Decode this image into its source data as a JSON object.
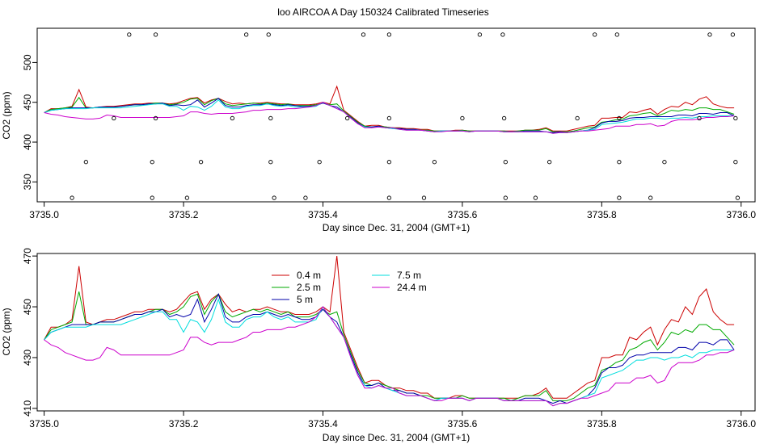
{
  "title": "loo AIRCOA A  Day 150324  Calibrated Timeseries",
  "chart_data": [
    {
      "type": "line",
      "xlabel": "Day since Dec. 31, 2004 (GMT+1)",
      "ylabel": "CO2 (ppm)",
      "xlim": [
        3734.99,
        3736.02
      ],
      "ylim": [
        325,
        543
      ],
      "xticks": [
        "3735.0",
        "3735.2",
        "3735.4",
        "3735.6",
        "3735.8",
        "3736.0"
      ],
      "yticks": [
        "350",
        "400",
        "450",
        "500"
      ],
      "colors": [
        "#cc0000",
        "#00aa00",
        "#0000aa",
        "#00dddd",
        "#cc00cc"
      ],
      "x": [
        3735.0,
        3735.01,
        3735.02,
        3735.03,
        3735.04,
        3735.05,
        3735.06,
        3735.07,
        3735.08,
        3735.09,
        3735.1,
        3735.11,
        3735.12,
        3735.13,
        3735.14,
        3735.15,
        3735.16,
        3735.17,
        3735.18,
        3735.19,
        3735.2,
        3735.21,
        3735.22,
        3735.23,
        3735.24,
        3735.25,
        3735.26,
        3735.27,
        3735.28,
        3735.29,
        3735.3,
        3735.31,
        3735.32,
        3735.33,
        3735.34,
        3735.35,
        3735.36,
        3735.37,
        3735.38,
        3735.39,
        3735.4,
        3735.41,
        3735.42,
        3735.43,
        3735.44,
        3735.45,
        3735.46,
        3735.47,
        3735.48,
        3735.49,
        3735.5,
        3735.51,
        3735.52,
        3735.53,
        3735.54,
        3735.55,
        3735.56,
        3735.57,
        3735.58,
        3735.59,
        3735.6,
        3735.61,
        3735.62,
        3735.63,
        3735.64,
        3735.65,
        3735.66,
        3735.67,
        3735.68,
        3735.69,
        3735.7,
        3735.71,
        3735.72,
        3735.73,
        3735.74,
        3735.75,
        3735.76,
        3735.77,
        3735.78,
        3735.79,
        3735.8,
        3735.81,
        3735.82,
        3735.83,
        3735.84,
        3735.85,
        3735.86,
        3735.87,
        3735.88,
        3735.89,
        3735.9,
        3735.91,
        3735.92,
        3735.93,
        3735.94,
        3735.95,
        3735.96,
        3735.97,
        3735.98,
        3735.99
      ],
      "series": [
        {
          "values": [
            437,
            442,
            442,
            443,
            445,
            466,
            444,
            443,
            444,
            445,
            445,
            446,
            447,
            448,
            448,
            449,
            449,
            449,
            448,
            449,
            452,
            455,
            456,
            449,
            453,
            455,
            451,
            448,
            449,
            448,
            449,
            449,
            450,
            449,
            448,
            448,
            447,
            447,
            447,
            448,
            450,
            448,
            470,
            440,
            433,
            426,
            420,
            421,
            421,
            419,
            418,
            418,
            417,
            417,
            416,
            416,
            414,
            414,
            414,
            415,
            415,
            414,
            414,
            414,
            414,
            414,
            414,
            414,
            414,
            415,
            415,
            416,
            418,
            414,
            414,
            414,
            416,
            418,
            420,
            421,
            430,
            430,
            431,
            431,
            438,
            437,
            440,
            442,
            435,
            441,
            445,
            444,
            450,
            447,
            454,
            457,
            448,
            445,
            443,
            443
          ]
        },
        {
          "values": [
            437,
            441,
            442,
            443,
            444,
            456,
            443,
            443,
            444,
            444,
            444,
            445,
            446,
            447,
            447,
            448,
            449,
            449,
            447,
            448,
            450,
            454,
            455,
            447,
            452,
            455,
            448,
            446,
            447,
            448,
            449,
            448,
            449,
            448,
            447,
            448,
            446,
            446,
            446,
            447,
            449,
            447,
            448,
            439,
            432,
            425,
            420,
            419,
            420,
            419,
            418,
            417,
            416,
            416,
            415,
            415,
            414,
            414,
            414,
            414,
            415,
            414,
            414,
            414,
            414,
            414,
            414,
            413,
            414,
            415,
            415,
            415,
            417,
            413,
            413,
            413,
            414,
            416,
            418,
            419,
            425,
            426,
            428,
            429,
            433,
            434,
            436,
            437,
            433,
            436,
            440,
            439,
            441,
            440,
            443,
            443,
            441,
            441,
            438,
            435
          ]
        },
        {
          "values": [
            437,
            440,
            441,
            442,
            443,
            443,
            443,
            443,
            444,
            444,
            444,
            445,
            446,
            447,
            447,
            448,
            448,
            449,
            446,
            447,
            446,
            447,
            453,
            444,
            449,
            455,
            446,
            444,
            444,
            446,
            447,
            447,
            448,
            447,
            446,
            447,
            446,
            445,
            445,
            446,
            449,
            446,
            444,
            438,
            431,
            424,
            419,
            419,
            420,
            418,
            417,
            417,
            416,
            416,
            415,
            414,
            413,
            414,
            414,
            414,
            414,
            413,
            414,
            414,
            414,
            414,
            413,
            413,
            413,
            414,
            414,
            414,
            413,
            412,
            413,
            412,
            413,
            414,
            415,
            418,
            424,
            426,
            426,
            427,
            430,
            431,
            431,
            432,
            432,
            432,
            432,
            434,
            434,
            433,
            436,
            436,
            435,
            437,
            437,
            433
          ]
        },
        {
          "values": [
            437,
            440,
            441,
            442,
            442,
            442,
            442,
            443,
            443,
            443,
            443,
            443,
            444,
            445,
            446,
            447,
            448,
            448,
            445,
            445,
            440,
            445,
            444,
            440,
            445,
            453,
            444,
            442,
            442,
            445,
            446,
            446,
            448,
            446,
            445,
            446,
            444,
            444,
            444,
            445,
            450,
            446,
            442,
            438,
            430,
            423,
            419,
            418,
            419,
            418,
            417,
            416,
            415,
            415,
            415,
            414,
            413,
            414,
            414,
            414,
            414,
            413,
            414,
            414,
            414,
            414,
            413,
            413,
            413,
            413,
            413,
            413,
            413,
            411,
            412,
            412,
            413,
            414,
            415,
            416,
            422,
            423,
            424,
            425,
            427,
            429,
            429,
            430,
            430,
            429,
            430,
            430,
            431,
            430,
            432,
            432,
            433,
            433,
            433,
            433
          ]
        },
        {
          "values": [
            437,
            435,
            434,
            432,
            431,
            430,
            429,
            429,
            430,
            434,
            433,
            431,
            431,
            431,
            431,
            431,
            431,
            431,
            431,
            432,
            433,
            438,
            438,
            436,
            435,
            436,
            436,
            436,
            437,
            438,
            440,
            440,
            441,
            441,
            441,
            442,
            442,
            443,
            444,
            446,
            450,
            446,
            442,
            438,
            430,
            423,
            418,
            418,
            419,
            418,
            418,
            416,
            415,
            415,
            415,
            414,
            413,
            413,
            414,
            414,
            414,
            413,
            414,
            414,
            414,
            414,
            413,
            413,
            413,
            413,
            413,
            413,
            413,
            411,
            412,
            412,
            413,
            414,
            414,
            415,
            416,
            417,
            420,
            420,
            420,
            422,
            422,
            423,
            420,
            421,
            426,
            428,
            428,
            428,
            429,
            431,
            431,
            432,
            432,
            433
          ]
        }
      ]
    },
    {
      "type": "line",
      "xlabel": "Day since Dec. 31, 2004 (GMT+1)",
      "ylabel": "CO2 (ppm)",
      "xlim": [
        3734.99,
        3736.02
      ],
      "ylim": [
        409,
        471
      ],
      "xticks": [
        "3735.0",
        "3735.2",
        "3735.4",
        "3735.6",
        "3735.8",
        "3736.0"
      ],
      "yticks": [
        "410",
        "430",
        "450",
        "470"
      ],
      "legend": [
        {
          "label": "0.4 m",
          "color": "#cc0000"
        },
        {
          "label": "2.5 m",
          "color": "#00aa00"
        },
        {
          "label": "5 m",
          "color": "#0000aa"
        },
        {
          "label": "7.5 m",
          "color": "#00dddd"
        },
        {
          "label": "24.4 m",
          "color": "#cc00cc"
        }
      ],
      "legend_position": "top-center"
    }
  ]
}
